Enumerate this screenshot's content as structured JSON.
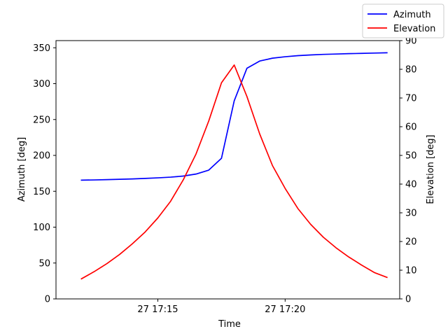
{
  "chart_data": {
    "type": "line",
    "xlabel": "Time",
    "ylabel_left": "Azimuth [deg]",
    "ylabel_right": "Elevation [deg]",
    "x_ticks": [
      "27 17:15",
      "27 17:20"
    ],
    "y_left_ticks": [
      "0",
      "50",
      "100",
      "150",
      "200",
      "250",
      "300",
      "350"
    ],
    "y_right_ticks": [
      "0",
      "10",
      "20",
      "30",
      "40",
      "50",
      "60",
      "70",
      "80",
      "90"
    ],
    "ylim_left": [
      0,
      360
    ],
    "ylim_right": [
      0,
      90
    ],
    "xlim": [
      "17:11:00",
      "17:24:30"
    ],
    "grid": false,
    "legend_placement": "top-right",
    "x": [
      "17:12:00",
      "17:12:30",
      "17:13:00",
      "17:13:30",
      "17:14:00",
      "17:14:30",
      "17:15:00",
      "17:15:30",
      "17:16:00",
      "17:16:30",
      "17:17:00",
      "17:17:30",
      "17:18:00",
      "17:18:30",
      "17:19:00",
      "17:19:30",
      "17:20:00",
      "17:20:30",
      "17:21:00",
      "17:21:30",
      "17:22:00",
      "17:22:30",
      "17:23:00",
      "17:23:30",
      "17:24:00"
    ],
    "series": [
      {
        "name": "Azimuth",
        "axis": "left",
        "color": "#0000ff",
        "values": [
          165.5,
          165.8,
          166.2,
          166.7,
          167.2,
          167.9,
          168.7,
          169.7,
          171.2,
          174.0,
          179.5,
          196.0,
          276.0,
          321.5,
          331.5,
          335.5,
          337.5,
          339.0,
          340.0,
          340.8,
          341.3,
          341.8,
          342.2,
          342.6,
          343.0
        ]
      },
      {
        "name": "Elevation",
        "axis": "right",
        "color": "#ff0000",
        "values": [
          7.0,
          9.5,
          12.3,
          15.5,
          19.2,
          23.3,
          28.2,
          34.0,
          41.5,
          50.5,
          62.0,
          75.3,
          81.5,
          70.5,
          57.5,
          46.5,
          38.5,
          31.5,
          26.0,
          21.5,
          17.8,
          14.6,
          11.8,
          9.2,
          7.5
        ]
      }
    ]
  }
}
